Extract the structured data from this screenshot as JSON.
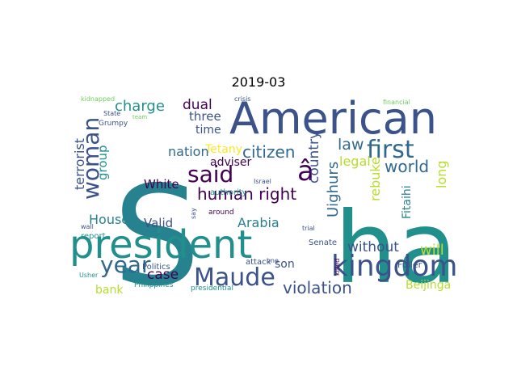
{
  "figure": {
    "title": "2019-03"
  },
  "palette": {
    "dark_purple": "#440154",
    "indigo": "#3b528b",
    "slate": "#31688e",
    "teal": "#21908d",
    "teal_blue": "#26828e",
    "green": "#35b779",
    "light_green": "#6ece58",
    "yellow_green": "#b5de2b",
    "yellow": "#fde725"
  },
  "wordcloud": {
    "words": [
      "S",
      "ha",
      "president",
      "American",
      "kingdom",
      "first",
      "woman",
      "said",
      "â",
      "Maude",
      "year",
      "human right",
      "citizen",
      "nation",
      "charge",
      "dual",
      "three",
      "time",
      "law",
      "country",
      "legal",
      "world",
      "terrorist",
      "group",
      "adviser",
      "Tetany",
      "White",
      "House",
      "Valid",
      "Arabia",
      "case",
      "bank",
      "Uighurs",
      "rebuke",
      "Fitaihi",
      "long",
      "will",
      "violation",
      "Beijinga",
      "son",
      "without",
      "Fuller",
      "Senate",
      "report",
      "authority",
      "around",
      "attack",
      "Politics",
      "presidential",
      "Philippines",
      "Usher",
      "kidnapped",
      "crisis",
      "financial",
      "Grumpy",
      "State",
      "team",
      "wall",
      "Israel",
      "trial",
      "killed",
      "one",
      "say"
    ]
  }
}
